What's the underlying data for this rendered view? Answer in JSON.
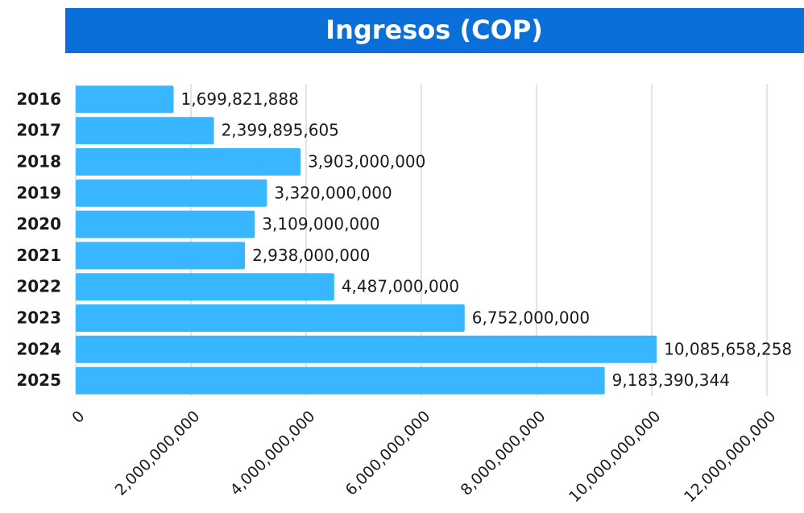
{
  "chart_data": {
    "type": "bar",
    "orientation": "horizontal",
    "title": "Ingresos (COP)",
    "categories": [
      "2016",
      "2017",
      "2018",
      "2019",
      "2020",
      "2021",
      "2022",
      "2023",
      "2024",
      "2025"
    ],
    "values": [
      1699821888,
      2399895605,
      3903000000,
      3320000000,
      3109000000,
      2938000000,
      4487000000,
      6752000000,
      10085658258,
      9183390344
    ],
    "value_labels": [
      "1,699,821,888",
      "2,399,895,605",
      "3,903,000,000",
      "3,320,000,000",
      "3,109,000,000",
      "2,938,000,000",
      "4,487,000,000",
      "6,752,000,000",
      "10,085,658,258",
      "9,183,390,344"
    ],
    "color": "#38b6ff",
    "xlim": [
      0,
      12000000000
    ],
    "xticks": [
      0,
      {
        "value": 2000000000,
        "label": "2,000,000,000"
      },
      {
        "value": 4000000000,
        "label": "4,000,000,000"
      },
      {
        "value": 6000000000,
        "label": "6,000,000,000"
      },
      {
        "value": 8000000000,
        "label": "8,000,000,000"
      },
      {
        "value": 10000000000,
        "label": "10,000,000,000"
      },
      {
        "value": 12000000000,
        "label": "12,000,000,000"
      }
    ],
    "grid": true
  }
}
